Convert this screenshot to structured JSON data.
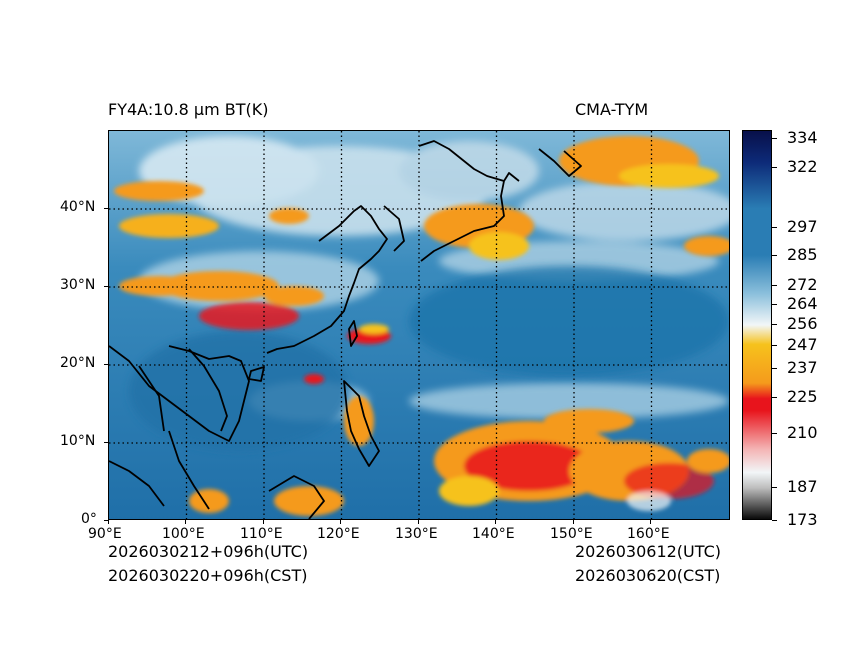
{
  "header": {
    "title_left": "FY4A:10.8 µm BT(K)",
    "title_right": "CMA-TYM"
  },
  "footer": {
    "init_utc": "2026030212+096h(UTC)",
    "init_cst": "2026030220+096h(CST)",
    "valid_utc": "2026030612(UTC)",
    "valid_cst": "2026030620(CST)"
  },
  "axes": {
    "x_ticks": [
      "90°E",
      "100°E",
      "110°E",
      "120°E",
      "130°E",
      "140°E",
      "150°E",
      "160°E"
    ],
    "y_ticks": [
      "0°",
      "10°N",
      "20°N",
      "30°N",
      "40°N"
    ]
  },
  "colorbar": {
    "labels": [
      "334",
      "322",
      "297",
      "285",
      "272",
      "264",
      "256",
      "247",
      "237",
      "225",
      "210",
      "187",
      "173"
    ],
    "colors": {
      "cold": "#0a0a0a",
      "red": "#e8141c",
      "orange": "#f59a1c",
      "yellow": "#f6c21c",
      "white": "#f2f6f8",
      "light_blue": "#8cc0dc",
      "blue": "#2a7db4",
      "dark_blue": "#0d2a78",
      "navy": "#08104a"
    }
  }
}
